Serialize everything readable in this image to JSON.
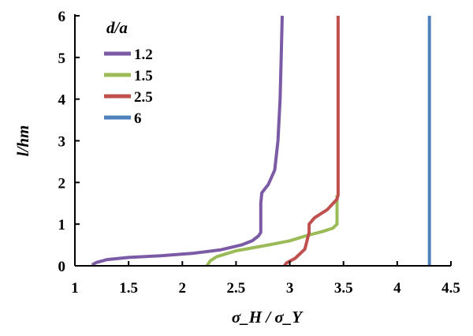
{
  "chart_data": {
    "type": "line",
    "xlabel": "σ_H / σ_Y",
    "ylabel": "l/hm",
    "xlim": [
      1,
      4.5
    ],
    "ylim": [
      0,
      6
    ],
    "x_ticks": [
      "1",
      "1.5",
      "2",
      "2.5",
      "3",
      "3.5",
      "4",
      "4.5"
    ],
    "y_ticks": [
      "0",
      "1",
      "2",
      "3",
      "4",
      "5",
      "6"
    ],
    "grid": false,
    "legend_title": "d/a",
    "legend_position": "top-left",
    "series": [
      {
        "name": "1.2",
        "color": "#7b5aa6",
        "points": [
          [
            1.16,
            0.02
          ],
          [
            1.2,
            0.08
          ],
          [
            1.3,
            0.15
          ],
          [
            1.5,
            0.2
          ],
          [
            1.8,
            0.24
          ],
          [
            2.1,
            0.3
          ],
          [
            2.35,
            0.38
          ],
          [
            2.55,
            0.5
          ],
          [
            2.65,
            0.6
          ],
          [
            2.71,
            0.72
          ],
          [
            2.73,
            0.8
          ],
          [
            2.73,
            1.5
          ],
          [
            2.74,
            1.75
          ],
          [
            2.8,
            1.95
          ],
          [
            2.86,
            2.3
          ],
          [
            2.89,
            3.0
          ],
          [
            2.91,
            4.0
          ],
          [
            2.92,
            5.0
          ],
          [
            2.93,
            6.0
          ]
        ]
      },
      {
        "name": "1.5",
        "color": "#9bbb59",
        "points": [
          [
            2.23,
            0.0
          ],
          [
            2.26,
            0.12
          ],
          [
            2.32,
            0.22
          ],
          [
            2.5,
            0.36
          ],
          [
            2.8,
            0.5
          ],
          [
            3.0,
            0.6
          ],
          [
            3.15,
            0.72
          ],
          [
            3.3,
            0.82
          ],
          [
            3.4,
            0.9
          ],
          [
            3.44,
            1.0
          ],
          [
            3.44,
            1.3
          ],
          [
            3.44,
            1.7
          ]
        ]
      },
      {
        "name": "2.5",
        "color": "#c0504d",
        "points": [
          [
            2.95,
            0.0
          ],
          [
            2.97,
            0.07
          ],
          [
            3.05,
            0.18
          ],
          [
            3.14,
            0.4
          ],
          [
            3.18,
            0.8
          ],
          [
            3.18,
            1.0
          ],
          [
            3.23,
            1.15
          ],
          [
            3.35,
            1.35
          ],
          [
            3.44,
            1.6
          ],
          [
            3.45,
            1.7
          ],
          [
            3.45,
            6.0
          ]
        ]
      },
      {
        "name": "6",
        "color": "#4f81bd",
        "points": [
          [
            4.3,
            0.0
          ],
          [
            4.3,
            6.0
          ]
        ]
      }
    ]
  }
}
